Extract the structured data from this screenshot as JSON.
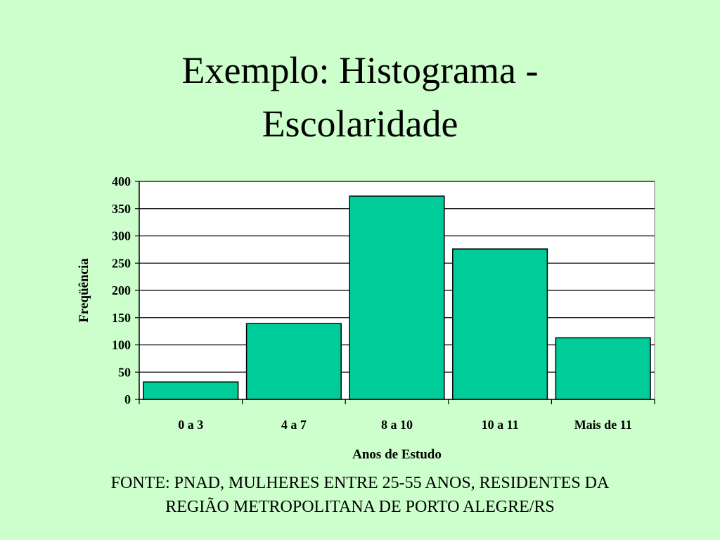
{
  "slide": {
    "background": "#CCFFCC",
    "title_line1": "Exemplo: Histograma -",
    "title_line2": "Escolaridade",
    "source_line1": "FONTE: PNAD, MULHERES ENTRE 25-55 ANOS, RESIDENTES DA",
    "source_line2": "REGIÃO METROPOLITANA DE PORTO ALEGRE/RS"
  },
  "chart_data": {
    "type": "bar",
    "title": "",
    "xlabel": "Anos de Estudo",
    "ylabel": "Freqüência",
    "categories": [
      "0 a 3",
      "4 a 7",
      "8 a 10",
      "10 a 11",
      "Mais de 11"
    ],
    "values": [
      32,
      139,
      373,
      276,
      113
    ],
    "ylim": [
      0,
      400
    ],
    "yticks": [
      0,
      50,
      100,
      150,
      200,
      250,
      300,
      350,
      400
    ],
    "grid": true,
    "legend": "none",
    "bar_color": "#00CC99",
    "bar_edge_color": "#000000",
    "plot_background": "#FFFFFF"
  }
}
